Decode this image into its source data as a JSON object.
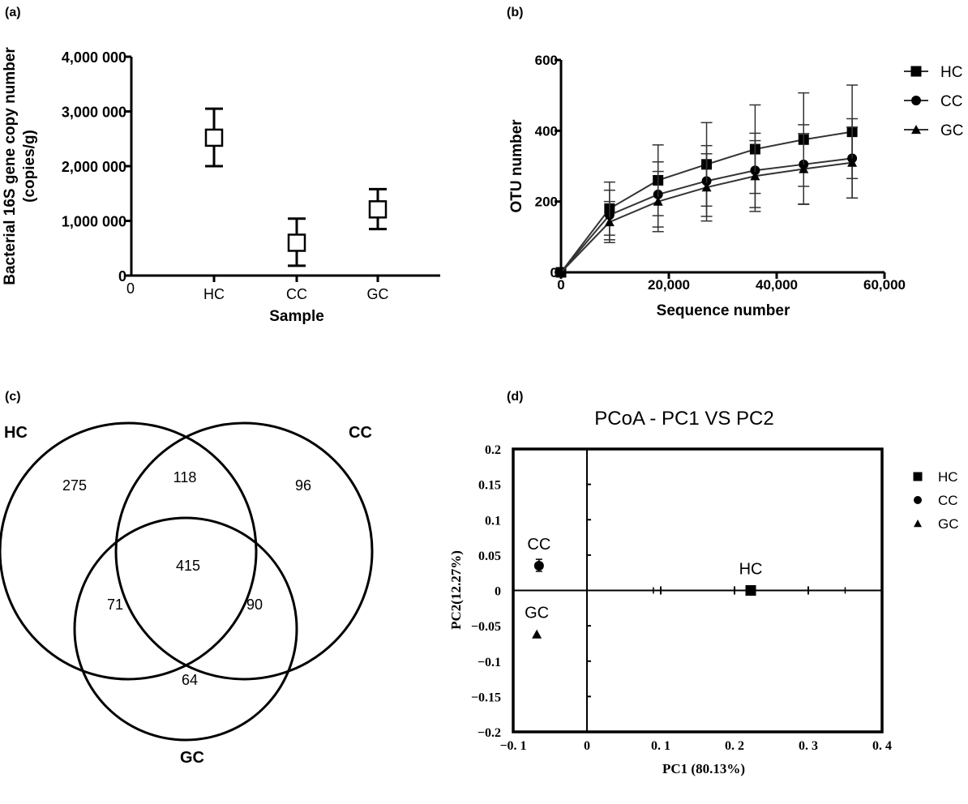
{
  "chart_data": [
    {
      "panel": "(a)",
      "type": "scatter",
      "ylabel_line1": "Bacterial 16S gene copy number",
      "ylabel_line2": "(copies/g)",
      "xlabel": "Sample",
      "x_origin_label": "0",
      "categories": [
        "HC",
        "CC",
        "GC"
      ],
      "values": [
        2520000,
        600000,
        1210000
      ],
      "error_low": [
        2000000,
        180000,
        850000
      ],
      "error_high": [
        3050000,
        1040000,
        1580000
      ],
      "ylim": [
        0,
        4000000
      ],
      "yticks": [
        {
          "value": 0,
          "label": "0"
        },
        {
          "value": 1000000,
          "label": "1,000 000"
        },
        {
          "value": 2000000,
          "label": "2,000 000"
        },
        {
          "value": 3000000,
          "label": "3,000 000"
        },
        {
          "value": 4000000,
          "label": "4,000 000"
        }
      ]
    },
    {
      "panel": "(b)",
      "type": "line",
      "xlabel": "Sequence number",
      "ylabel": "OTU number",
      "xlim": [
        0,
        60000
      ],
      "ylim": [
        0,
        600
      ],
      "xticks": [
        {
          "value": 0,
          "label": "0"
        },
        {
          "value": 20000,
          "label": "20,000"
        },
        {
          "value": 40000,
          "label": "40,000"
        },
        {
          "value": 60000,
          "label": "60,000"
        }
      ],
      "yticks": [
        {
          "value": 0,
          "label": "0"
        },
        {
          "value": 200,
          "label": "200"
        },
        {
          "value": 400,
          "label": "400"
        },
        {
          "value": 600,
          "label": "600"
        }
      ],
      "x": [
        0,
        9000,
        18000,
        27000,
        36000,
        45000,
        54000
      ],
      "series": [
        {
          "name": "HC",
          "marker": "square",
          "values": [
            0,
            180,
            260,
            305,
            348,
            375,
            397
          ],
          "err": [
            0,
            75,
            100,
            118,
            125,
            132,
            132
          ]
        },
        {
          "name": "CC",
          "marker": "circle",
          "values": [
            0,
            162,
            220,
            258,
            288,
            305,
            322
          ],
          "err": [
            0,
            70,
            92,
            100,
            105,
            112,
            112
          ]
        },
        {
          "name": "GC",
          "marker": "triangle",
          "values": [
            0,
            142,
            200,
            240,
            272,
            292,
            310
          ],
          "err": [
            0,
            58,
            85,
            95,
            100,
            100,
            100
          ]
        }
      ],
      "legend": "right"
    },
    {
      "panel": "(c)",
      "type": "venn",
      "sets": [
        "HC",
        "CC",
        "GC"
      ],
      "regions": {
        "HC_only": "275",
        "CC_only": "96",
        "GC_only": "64",
        "HC_CC": "118",
        "HC_GC": "71",
        "CC_GC": "90",
        "HC_CC_GC": "415"
      }
    },
    {
      "panel": "(d)",
      "type": "scatter",
      "title": "PCoA - PC1 VS PC2",
      "xlabel": "PC1  (80.13%)",
      "ylabel": "PC2(12.27%)",
      "xlim": [
        -0.1,
        0.4
      ],
      "ylim": [
        -0.2,
        0.2
      ],
      "xticks": [
        {
          "value": -0.1,
          "label": "−0. 1"
        },
        {
          "value": 0,
          "label": "0"
        },
        {
          "value": 0.1,
          "label": "0. 1"
        },
        {
          "value": 0.2,
          "label": "0. 2"
        },
        {
          "value": 0.3,
          "label": "0. 3"
        },
        {
          "value": 0.4,
          "label": "0. 4"
        }
      ],
      "yticks": [
        {
          "value": 0.2,
          "label": "0.2"
        },
        {
          "value": 0.15,
          "label": "0.15"
        },
        {
          "value": 0.1,
          "label": "0.1"
        },
        {
          "value": 0.05,
          "label": "0.05"
        },
        {
          "value": 0,
          "label": "0"
        },
        {
          "value": -0.05,
          "label": "−0.05"
        },
        {
          "value": -0.1,
          "label": "−0.1"
        },
        {
          "value": -0.15,
          "label": "−0.15"
        },
        {
          "value": -0.2,
          "label": "−0.2"
        }
      ],
      "points": [
        {
          "name": "HC",
          "marker": "square",
          "x": 0.222,
          "y": 0.0,
          "xerr_low": 0.09,
          "xerr_high": 0.35
        },
        {
          "name": "CC",
          "marker": "circle",
          "x": -0.065,
          "y": 0.035,
          "yerr_low": 0.027,
          "yerr_high": 0.044
        },
        {
          "name": "GC",
          "marker": "triangle",
          "x": -0.068,
          "y": -0.062
        }
      ],
      "legend": "right"
    }
  ]
}
